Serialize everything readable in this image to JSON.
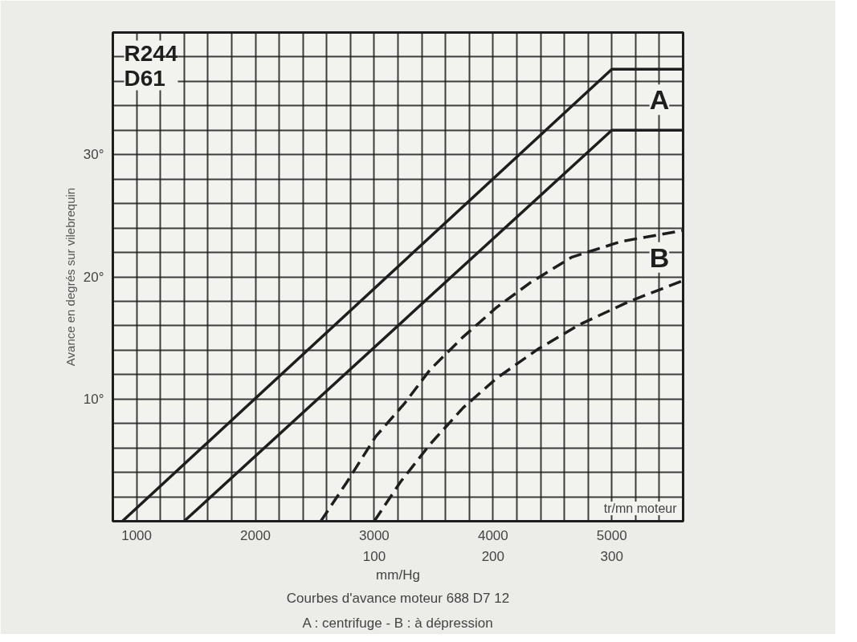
{
  "chart_data": {
    "type": "line",
    "xlabel": "tr/mn moteur",
    "ylabel": "Avance en degrés sur vilebrequin",
    "x2label": "mm/Hg",
    "xlim": [
      800,
      5600
    ],
    "ylim": [
      0,
      40
    ],
    "x2lim": [
      -120,
      360
    ],
    "xticks": [
      {
        "value": 800,
        "label": null
      },
      {
        "value": 1000,
        "label": "1000"
      },
      {
        "value": 1200,
        "label": null
      },
      {
        "value": 1400,
        "label": null
      },
      {
        "value": 1600,
        "label": null
      },
      {
        "value": 1800,
        "label": null
      },
      {
        "value": 2000,
        "label": "2000"
      },
      {
        "value": 2200,
        "label": null
      },
      {
        "value": 2400,
        "label": null
      },
      {
        "value": 2600,
        "label": null
      },
      {
        "value": 2800,
        "label": null
      },
      {
        "value": 3000,
        "label": "3000"
      },
      {
        "value": 3200,
        "label": null
      },
      {
        "value": 3400,
        "label": null
      },
      {
        "value": 3600,
        "label": null
      },
      {
        "value": 3800,
        "label": null
      },
      {
        "value": 4000,
        "label": "4000"
      },
      {
        "value": 4200,
        "label": null
      },
      {
        "value": 4400,
        "label": null
      },
      {
        "value": 4600,
        "label": null
      },
      {
        "value": 4800,
        "label": null
      },
      {
        "value": 5000,
        "label": "5000"
      },
      {
        "value": 5200,
        "label": null
      },
      {
        "value": 5400,
        "label": null
      }
    ],
    "x2ticks": [
      100,
      200,
      300
    ],
    "yticks": [
      {
        "value": 0,
        "label": null
      },
      {
        "value": 2,
        "label": null
      },
      {
        "value": 4,
        "label": null
      },
      {
        "value": 6,
        "label": null
      },
      {
        "value": 8,
        "label": null
      },
      {
        "value": 10,
        "label": "10°"
      },
      {
        "value": 12,
        "label": null
      },
      {
        "value": 14,
        "label": null
      },
      {
        "value": 16,
        "label": null
      },
      {
        "value": 18,
        "label": null
      },
      {
        "value": 20,
        "label": "20°"
      },
      {
        "value": 22,
        "label": null
      },
      {
        "value": 24,
        "label": null
      },
      {
        "value": 26,
        "label": null
      },
      {
        "value": 28,
        "label": null
      },
      {
        "value": 30,
        "label": "30°"
      },
      {
        "value": 32,
        "label": null
      },
      {
        "value": 34,
        "label": null
      },
      {
        "value": 36,
        "label": null
      },
      {
        "value": 38,
        "label": null
      }
    ],
    "grid": true,
    "series": [
      {
        "color": "#1e1e1e",
        "line_style": "solid",
        "x": [
          880,
          5000,
          5600
        ],
        "values": [
          0,
          37,
          37
        ]
      },
      {
        "color": "#1e1e1e",
        "line_style": "solid",
        "x": [
          1400,
          5000,
          5600
        ],
        "values": [
          0,
          32,
          32
        ]
      },
      {
        "color": "#1e1e1e",
        "line_style": "dashed",
        "x": [
          2550,
          2770,
          3010,
          3260,
          3470,
          3750,
          4030,
          4310,
          4660,
          5080,
          5600
        ],
        "values": [
          0,
          3.2,
          6.9,
          9.7,
          12.4,
          15.1,
          17.5,
          19.5,
          21.6,
          22.9,
          23.8
        ]
      },
      {
        "color": "#1e1e1e",
        "line_style": "dashed",
        "x": [
          3000,
          3220,
          3470,
          3750,
          4030,
          4380,
          4730,
          5150,
          5600
        ],
        "values": [
          0,
          3.2,
          6.3,
          9.3,
          11.7,
          14.1,
          16.1,
          18,
          19.7
        ]
      }
    ],
    "annotations": [
      "R244\nD61",
      {
        "text": "A",
        "x": 5400,
        "y": 34.5
      },
      {
        "text": "B",
        "x": 5400,
        "y": 21.6
      },
      "Courbes d'avance moteur 688 D7 12",
      "A : centrifuge - B : à dépression"
    ]
  }
}
